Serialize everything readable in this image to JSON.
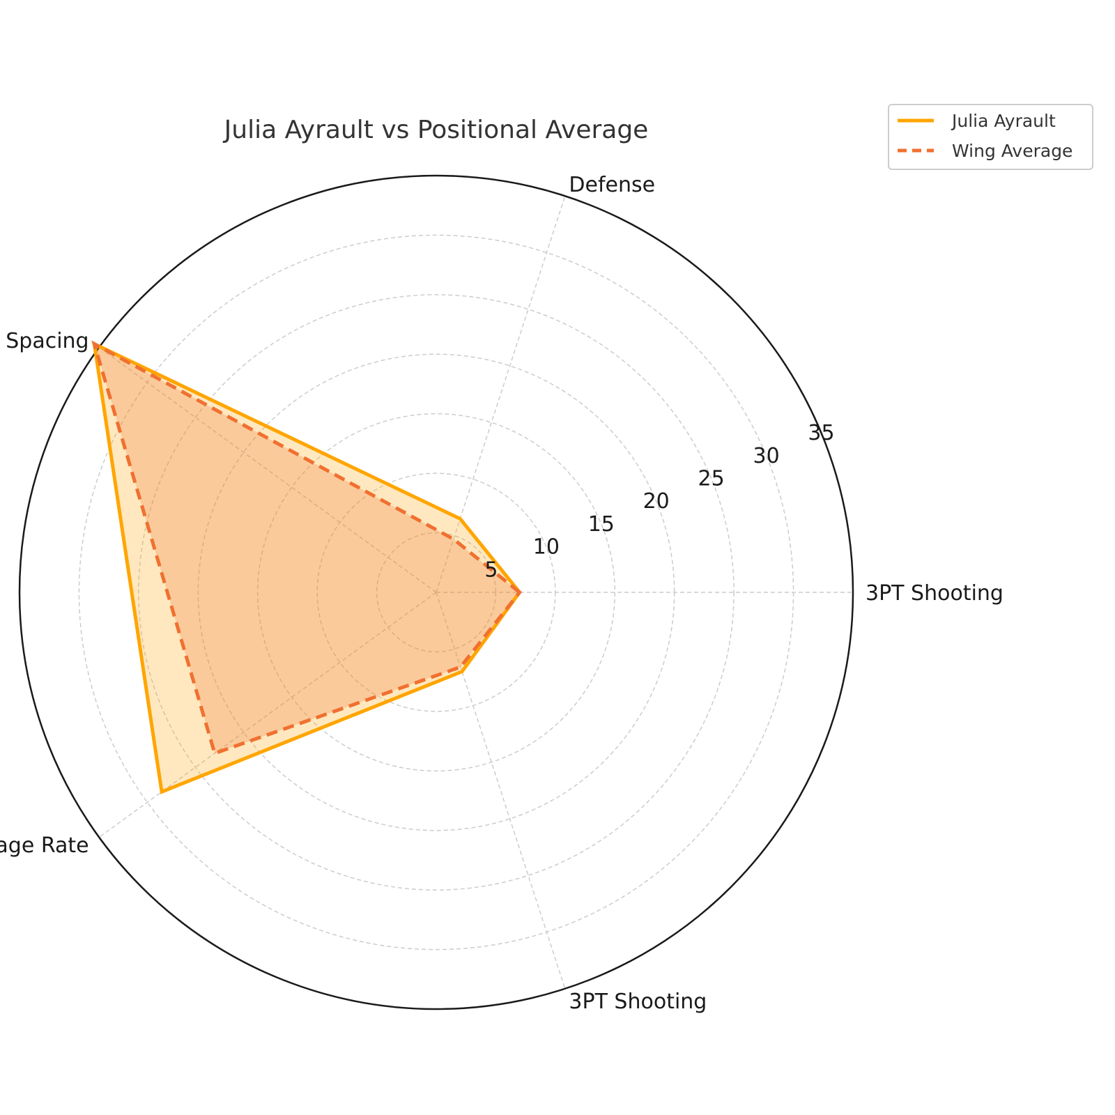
{
  "chart_data": {
    "type": "radar",
    "title": "Julia Ayrault vs Positional Average",
    "categories": [
      "3PT Shooting",
      "Defense",
      "Spacing",
      "Usage Rate",
      "3PT Shooting"
    ],
    "rlim": [
      0,
      35
    ],
    "rticks": [
      5,
      10,
      15,
      20,
      25,
      30,
      35
    ],
    "grid": true,
    "legend_position": "top-right",
    "series": [
      {
        "name": "Julia Ayrault",
        "values": [
          7,
          6.5,
          35.5,
          28.5,
          7
        ],
        "color": "#FFA500",
        "line_style": "solid",
        "fill": true
      },
      {
        "name": "Wing Average",
        "values": [
          7,
          4.7,
          35.5,
          23.0,
          6.6
        ],
        "color": "#F07030",
        "line_style": "dashed",
        "fill": true
      }
    ]
  }
}
